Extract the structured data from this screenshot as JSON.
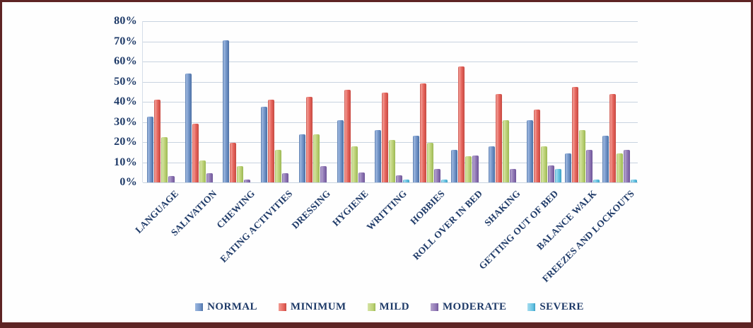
{
  "frame": {
    "border_color": "#5E2424",
    "background": "#FEFEFE"
  },
  "chart_data": {
    "type": "bar",
    "categories": [
      "LANGUAGE",
      "SALIVATION",
      "CHEWING",
      "EATING ACTIVITIES",
      "DRESSING",
      "HYGIENE",
      "WRITTING",
      "HOBBIES",
      "ROLL OVER IN BED",
      "SHAKING",
      "GETTING OUT OF BED",
      "BALANCE WALK",
      "FREEZES AND LOCKOUTS"
    ],
    "series": [
      {
        "name": "NORMAL",
        "color": "#7092C6",
        "color_light": "#9DB8E0",
        "color_dark": "#4C70A4",
        "values": [
          32.5,
          54,
          70.5,
          37.5,
          24,
          31,
          26,
          23,
          16,
          18,
          31,
          14.5,
          23
        ]
      },
      {
        "name": "MINIMUM",
        "color": "#E4625A",
        "color_light": "#F29B93",
        "color_dark": "#C64A42",
        "values": [
          41,
          29,
          19.5,
          41,
          42.5,
          46,
          44.5,
          49,
          57.5,
          44,
          36,
          47.5,
          44
        ]
      },
      {
        "name": "MILD",
        "color": "#BCD176",
        "color_light": "#D5E3A4",
        "color_dark": "#9CB954",
        "values": [
          22.5,
          11,
          8,
          16,
          24,
          18,
          21,
          19.5,
          13,
          31,
          18,
          26,
          14.5
        ]
      },
      {
        "name": "MODERATE",
        "color": "#8F76B4",
        "color_light": "#B3A2CC",
        "color_dark": "#6E5698",
        "values": [
          3,
          4.5,
          1.5,
          4.5,
          8,
          5,
          3.5,
          6.5,
          13.5,
          6.5,
          8.5,
          16,
          16
        ]
      },
      {
        "name": "SEVERE",
        "color": "#66C3E2",
        "color_light": "#A5DCEF",
        "color_dark": "#3D9FC4",
        "values": [
          0,
          0,
          0,
          0,
          0,
          0,
          1.5,
          1.5,
          0,
          0,
          6.5,
          1.5,
          1.5
        ]
      }
    ],
    "ylim": [
      0,
      80
    ],
    "y_tick_step": 10,
    "y_tick_labels": [
      "80%",
      "70%",
      "60%",
      "50%",
      "40%",
      "30%",
      "20%",
      "10%",
      "0%"
    ],
    "y_tick_format": "percent",
    "grid": true,
    "legend_position": "bottom",
    "text_color": "#1E3A68",
    "gridline_color": "#C8D3E0"
  }
}
